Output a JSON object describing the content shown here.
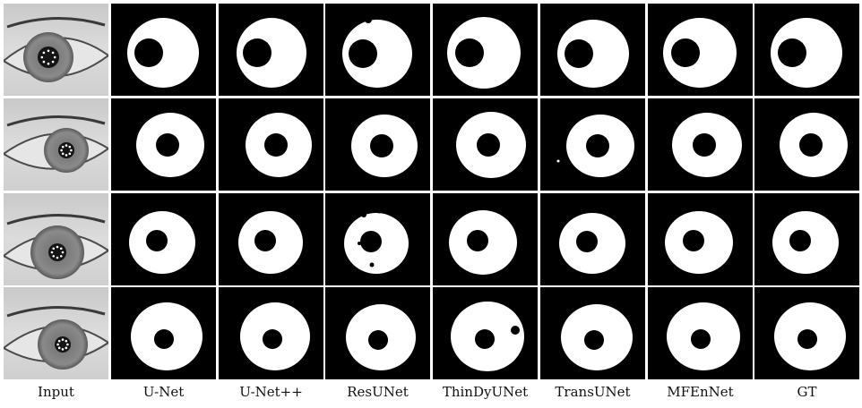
{
  "columns": [
    {
      "label": "Input",
      "kind": "photo"
    },
    {
      "label": "U-Net",
      "kind": "mask"
    },
    {
      "label": "U-Net++",
      "kind": "mask"
    },
    {
      "label": "ResUNet",
      "kind": "mask"
    },
    {
      "label": "ThinDyUNet",
      "kind": "mask"
    },
    {
      "label": "TransUNet",
      "kind": "mask"
    },
    {
      "label": "MFEnNet",
      "kind": "mask"
    },
    {
      "label": "GT",
      "kind": "mask"
    }
  ],
  "rows": 4,
  "colors": {
    "mask_foreground": "#ffffff",
    "mask_background": "#000000",
    "background": "#ffffff"
  }
}
